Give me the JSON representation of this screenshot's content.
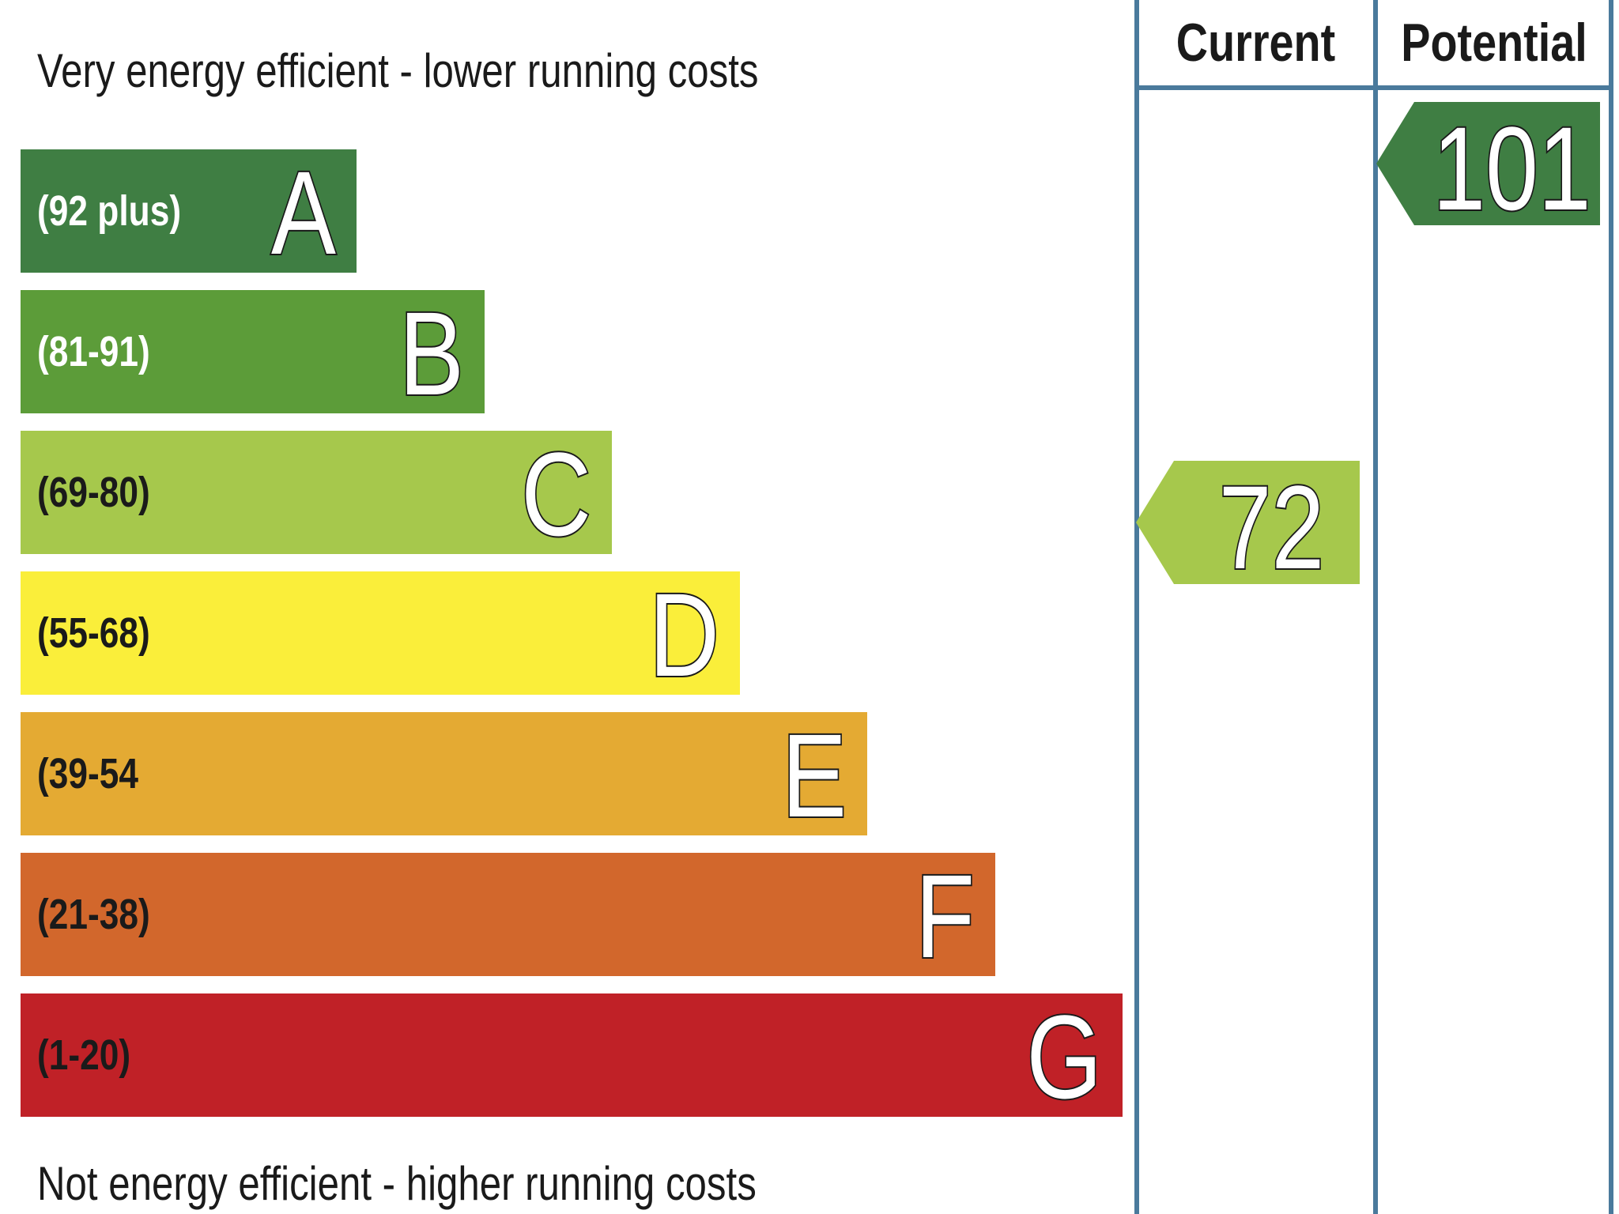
{
  "chart_data": {
    "type": "bar",
    "caption_top": "Very energy efficient - lower running costs",
    "caption_bottom": "Not energy efficient - higher running costs",
    "columns": [
      "Current",
      "Potential"
    ],
    "bands": [
      {
        "letter": "A",
        "range": "(92 plus)",
        "min": 92,
        "max": null,
        "color": "#3f7e43",
        "range_text_color": "#ffffff"
      },
      {
        "letter": "B",
        "range": "(81-91)",
        "min": 81,
        "max": 91,
        "color": "#5c9c39",
        "range_text_color": "#ffffff"
      },
      {
        "letter": "C",
        "range": "(69-80)",
        "min": 69,
        "max": 80,
        "color": "#a6c84c",
        "range_text_color": "#1a1a1a"
      },
      {
        "letter": "D",
        "range": "(55-68)",
        "min": 55,
        "max": 68,
        "color": "#faee3a",
        "range_text_color": "#1a1a1a"
      },
      {
        "letter": "E",
        "range": "(39-54",
        "min": 39,
        "max": 54,
        "color": "#e4aa33",
        "range_text_color": "#1a1a1a"
      },
      {
        "letter": "F",
        "range": "(21-38)",
        "min": 21,
        "max": 38,
        "color": "#d2672c",
        "range_text_color": "#1a1a1a"
      },
      {
        "letter": "G",
        "range": "(1-20)",
        "min": 1,
        "max": 20,
        "color": "#c02127",
        "range_text_color": "#1a1a1a"
      }
    ],
    "ratings": [
      {
        "column": "Current",
        "value": 72,
        "band": "C",
        "color": "#a6c84c"
      },
      {
        "column": "Potential",
        "value": 101,
        "band": "A",
        "color": "#3f7e43"
      }
    ],
    "rule_color": "#4a7a9c"
  }
}
